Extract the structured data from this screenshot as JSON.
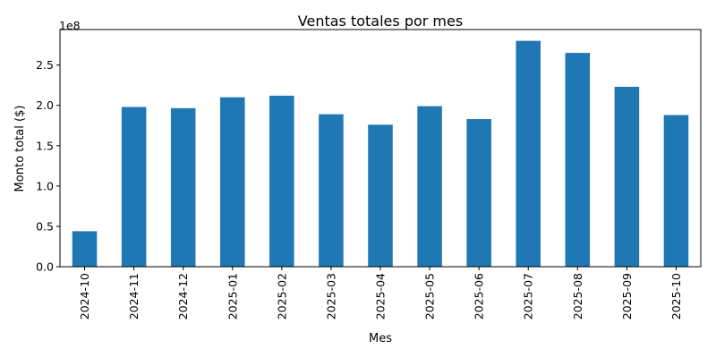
{
  "chart_data": {
    "type": "bar",
    "title": "Ventas totales por mes",
    "xlabel": "Mes",
    "ylabel": "Monto total ($)",
    "y_offset_label": "1e8",
    "y_scale": 100000000,
    "categories": [
      "2024-10",
      "2024-11",
      "2024-12",
      "2025-01",
      "2025-02",
      "2025-03",
      "2025-04",
      "2025-05",
      "2025-06",
      "2025-07",
      "2025-08",
      "2025-09",
      "2025-10"
    ],
    "values": [
      44000000,
      198000000,
      196500000,
      210000000,
      212000000,
      189000000,
      176000000,
      199000000,
      183000000,
      280000000,
      265000000,
      223000000,
      188000000
    ],
    "yticks": [
      "0.0",
      "0.5",
      "1.0",
      "1.5",
      "2.0",
      "2.5"
    ],
    "ylim": [
      0,
      294000000
    ],
    "grid": false,
    "bar_color": "#1f77b4"
  }
}
